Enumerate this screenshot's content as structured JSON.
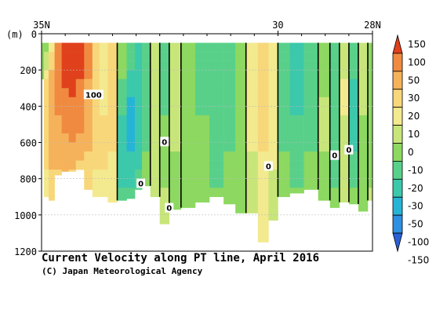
{
  "chart_data": {
    "type": "heatmap",
    "title": "Current Velocity along PT line, April 2016",
    "credit": "(C) Japan Meteorological Agency",
    "ylabel": "(m)",
    "x_ticks": [
      "35N",
      "30",
      "28N"
    ],
    "x_range": [
      35,
      28
    ],
    "y_ticks": [
      0,
      200,
      400,
      600,
      800,
      1000,
      1200
    ],
    "y_range": [
      0,
      1200
    ],
    "y_inverted": true,
    "grid": false,
    "colorbar": {
      "position": "right",
      "levels": [
        150,
        100,
        50,
        30,
        20,
        10,
        0,
        -10,
        -20,
        -30,
        -50,
        -100,
        -150
      ],
      "colors": [
        "#e0401c",
        "#f08a40",
        "#f5b25a",
        "#f8d77a",
        "#f3e98e",
        "#c8e57a",
        "#8dd860",
        "#59d08a",
        "#3cc8aa",
        "#26b4d6",
        "#2f8fe0",
        "#2b5fd4"
      ]
    },
    "contour_labels": [
      {
        "lat": 33.9,
        "depth": 335,
        "value": 100
      },
      {
        "lat": 32.4,
        "depth": 595,
        "value": 0
      },
      {
        "lat": 32.3,
        "depth": 960,
        "value": 0
      },
      {
        "lat": 32.9,
        "depth": 825,
        "value": 0
      },
      {
        "lat": 30.2,
        "depth": 730,
        "value": 0
      },
      {
        "lat": 28.8,
        "depth": 670,
        "value": 0
      },
      {
        "lat": 28.5,
        "depth": 640,
        "value": 0
      }
    ],
    "sections": [
      {
        "lat": 35.0,
        "bottom": 250,
        "v": [
          -10,
          0,
          0,
          0,
          0
        ]
      },
      {
        "lat": 34.9,
        "bottom": 900,
        "v": [
          -10,
          20,
          30,
          25,
          15
        ]
      },
      {
        "lat": 34.8,
        "bottom": 920,
        "v": [
          10,
          40,
          50,
          40,
          20
        ]
      },
      {
        "lat": 34.65,
        "bottom": 780,
        "v": [
          80,
          60,
          50,
          40,
          20
        ]
      },
      {
        "lat": 34.5,
        "bottom": 760,
        "v": [
          150,
          110,
          60,
          40,
          25
        ]
      },
      {
        "lat": 34.35,
        "bottom": 760,
        "v": [
          150,
          120,
          70,
          40,
          20
        ]
      },
      {
        "lat": 34.2,
        "bottom": 750,
        "v": [
          140,
          100,
          60,
          35,
          20
        ]
      },
      {
        "lat": 34.0,
        "bottom": 860,
        "v": [
          60,
          50,
          45,
          30,
          20
        ]
      },
      {
        "lat": 33.85,
        "bottom": 900,
        "v": [
          30,
          25,
          30,
          25,
          15
        ]
      },
      {
        "lat": 33.7,
        "bottom": 900,
        "v": [
          10,
          15,
          20,
          25,
          15
        ]
      },
      {
        "lat": 33.5,
        "bottom": 930,
        "v": [
          20,
          25,
          30,
          20,
          10
        ]
      },
      {
        "lat": 33.3,
        "bottom": 920,
        "v": [
          0,
          -10,
          -20,
          -30,
          -20
        ]
      },
      {
        "lat": 33.1,
        "bottom": 910,
        "v": [
          -10,
          -25,
          -35,
          -30,
          -20
        ]
      },
      {
        "lat": 32.95,
        "bottom": 860,
        "v": [
          -20,
          -30,
          -30,
          -25,
          -15
        ]
      },
      {
        "lat": 32.8,
        "bottom": 840,
        "v": [
          -10,
          -15,
          -20,
          -10,
          -5
        ]
      },
      {
        "lat": 32.6,
        "bottom": 900,
        "v": [
          0,
          5,
          10,
          5,
          0
        ]
      },
      {
        "lat": 32.4,
        "bottom": 1050,
        "v": [
          -10,
          -15,
          -10,
          -5,
          0
        ]
      },
      {
        "lat": 32.2,
        "bottom": 970,
        "v": [
          0,
          10,
          5,
          0,
          -5
        ]
      },
      {
        "lat": 31.9,
        "bottom": 960,
        "v": [
          -5,
          -10,
          -5,
          -10,
          -10
        ]
      },
      {
        "lat": 31.6,
        "bottom": 930,
        "v": [
          -10,
          -15,
          -10,
          -10,
          -10
        ]
      },
      {
        "lat": 31.3,
        "bottom": 900,
        "v": [
          -15,
          -20,
          -15,
          -15,
          -10
        ]
      },
      {
        "lat": 31.0,
        "bottom": 940,
        "v": [
          -10,
          -15,
          -15,
          -10,
          -10
        ]
      },
      {
        "lat": 30.8,
        "bottom": 990,
        "v": [
          -5,
          -10,
          -10,
          -5,
          -5
        ]
      },
      {
        "lat": 30.55,
        "bottom": 990,
        "v": [
          10,
          15,
          20,
          10,
          5
        ]
      },
      {
        "lat": 30.3,
        "bottom": 1150,
        "v": [
          20,
          20,
          30,
          20,
          10
        ]
      },
      {
        "lat": 30.1,
        "bottom": 1030,
        "v": [
          10,
          15,
          20,
          15,
          5
        ]
      },
      {
        "lat": 29.9,
        "bottom": 900,
        "v": [
          -10,
          -20,
          -15,
          -10,
          -5
        ]
      },
      {
        "lat": 29.6,
        "bottom": 880,
        "v": [
          -20,
          -25,
          -20,
          -15,
          -10
        ]
      },
      {
        "lat": 29.3,
        "bottom": 860,
        "v": [
          -10,
          -20,
          -15,
          -10,
          -5
        ]
      },
      {
        "lat": 29.0,
        "bottom": 920,
        "v": [
          0,
          -5,
          5,
          0,
          -5
        ]
      },
      {
        "lat": 28.8,
        "bottom": 960,
        "v": [
          -15,
          -20,
          -20,
          -15,
          -10
        ]
      },
      {
        "lat": 28.6,
        "bottom": 930,
        "v": [
          5,
          10,
          10,
          5,
          0
        ]
      },
      {
        "lat": 28.4,
        "bottom": 940,
        "v": [
          -15,
          -20,
          -25,
          -20,
          -10
        ]
      },
      {
        "lat": 28.2,
        "bottom": 980,
        "v": [
          5,
          5,
          0,
          -5,
          -5
        ]
      },
      {
        "lat": 28.0,
        "bottom": 920,
        "v": [
          -10,
          -10,
          -5,
          -5,
          0
        ]
      }
    ],
    "sample_depths": [
      50,
      250,
      450,
      650,
      850
    ]
  }
}
